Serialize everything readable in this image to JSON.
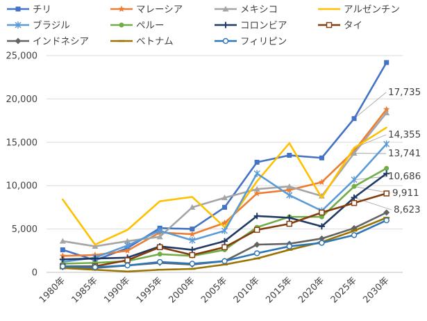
{
  "chart_data": {
    "type": "line",
    "title": "",
    "xlabel": "",
    "ylabel": "",
    "ylim": [
      0,
      25000
    ],
    "yticks": [
      0,
      5000,
      10000,
      15000,
      20000,
      25000
    ],
    "ytick_labels": [
      "0",
      "5,000",
      "10,000",
      "15,000",
      "20,000",
      "25,000"
    ],
    "grid": "horizontal",
    "legend_placement": "top",
    "categories": [
      "1980年",
      "1985年",
      "1990年",
      "1995年",
      "2000年",
      "2005年",
      "2010年",
      "2015年",
      "2020年",
      "2025年",
      "2030年"
    ],
    "series": [
      {
        "name": "チリ",
        "color": "#4472C4",
        "marker": "square",
        "values": [
          2600,
          1400,
          2800,
          5100,
          5000,
          7500,
          12700,
          13500,
          13200,
          17735,
          24200
        ]
      },
      {
        "name": "マレーシア",
        "color": "#ED7D31",
        "marker": "star",
        "values": [
          1900,
          2000,
          2500,
          4600,
          4400,
          5700,
          9100,
          9500,
          10400,
          14000,
          18800
        ]
      },
      {
        "name": "メキシコ",
        "color": "#A5A5A5",
        "marker": "triangle",
        "values": [
          3600,
          3000,
          3600,
          4100,
          7500,
          8600,
          9600,
          9900,
          8800,
          13741,
          18400
        ]
      },
      {
        "name": "アルゼンチン",
        "color": "#FFC000",
        "marker": "none",
        "values": [
          8400,
          3200,
          4900,
          8200,
          8700,
          5200,
          10500,
          14900,
          8600,
          14355,
          16700
        ]
      },
      {
        "name": "ブラジル",
        "color": "#5B9BD5",
        "marker": "x",
        "values": [
          1200,
          1700,
          3100,
          4800,
          3700,
          4800,
          11400,
          8900,
          7100,
          10686,
          14800
        ]
      },
      {
        "name": "ペルー",
        "color": "#70AD47",
        "marker": "circle",
        "values": [
          1000,
          1100,
          1300,
          2100,
          1900,
          2600,
          5200,
          6400,
          6400,
          9911,
          12000
        ]
      },
      {
        "name": "コロンビア",
        "color": "#1F3864",
        "marker": "plus",
        "values": [
          1500,
          1600,
          1700,
          3000,
          2600,
          3600,
          6500,
          6300,
          5300,
          8623,
          11400
        ]
      },
      {
        "name": "タイ",
        "color": "#843C0C",
        "marker": "hollow-square",
        "values": [
          700,
          700,
          1400,
          2900,
          2000,
          2900,
          4900,
          5600,
          6900,
          8000,
          9100
        ]
      },
      {
        "name": "インドネシア",
        "color": "#636363",
        "marker": "diamond",
        "values": [
          600,
          500,
          800,
          1100,
          900,
          1300,
          3200,
          3300,
          3900,
          5100,
          6900
        ]
      },
      {
        "name": "ベトナム",
        "color": "#997300",
        "marker": "line",
        "values": [
          500,
          300,
          100,
          300,
          400,
          900,
          1600,
          2600,
          3500,
          4800,
          6300
        ]
      },
      {
        "name": "フィリピン",
        "color": "#2E75B6",
        "marker": "hollow-circle",
        "values": [
          700,
          600,
          800,
          1200,
          1000,
          1300,
          2200,
          3000,
          3400,
          4300,
          6000
        ]
      }
    ],
    "annotations": [
      {
        "text": "17,735",
        "series": "チリ",
        "x": "2025年",
        "value": 17735
      },
      {
        "text": "14,355",
        "series": "アルゼンチン",
        "x": "2025年",
        "value": 14355
      },
      {
        "text": "13,741",
        "series": "メキシコ",
        "x": "2025年",
        "value": 13741
      },
      {
        "text": "10,686",
        "series": "ブラジル",
        "x": "2025年",
        "value": 10686
      },
      {
        "text": "9,911",
        "series": "ペルー",
        "x": "2025年",
        "value": 9911
      },
      {
        "text": "8,623",
        "series": "コロンビア",
        "x": "2025年",
        "value": 8623
      }
    ]
  }
}
